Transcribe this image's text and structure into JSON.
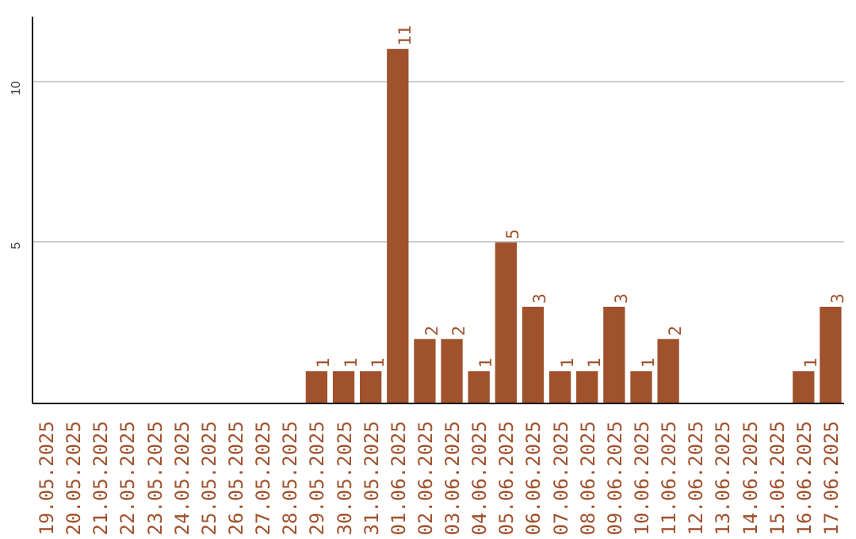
{
  "chart_data": {
    "type": "bar",
    "categories": [
      "19.05.2025",
      "20.05.2025",
      "21.05.2025",
      "22.05.2025",
      "23.05.2025",
      "24.05.2025",
      "25.05.2025",
      "26.05.2025",
      "27.05.2025",
      "28.05.2025",
      "29.05.2025",
      "30.05.2025",
      "31.05.2025",
      "01.06.2025",
      "02.06.2025",
      "03.06.2025",
      "04.06.2025",
      "05.06.2025",
      "06.06.2025",
      "07.06.2025",
      "08.06.2025",
      "09.06.2025",
      "10.06.2025",
      "11.06.2025",
      "12.06.2025",
      "13.06.2025",
      "14.06.2025",
      "15.06.2025",
      "16.06.2025",
      "17.06.2025"
    ],
    "values": [
      0,
      0,
      0,
      0,
      0,
      0,
      0,
      0,
      0,
      0,
      1,
      1,
      1,
      11,
      2,
      2,
      1,
      5,
      3,
      1,
      1,
      3,
      1,
      2,
      0,
      0,
      0,
      0,
      1,
      3
    ],
    "value_labels": [
      null,
      null,
      null,
      null,
      null,
      null,
      null,
      null,
      null,
      null,
      "1",
      "1",
      "1",
      "11",
      "2",
      "2",
      "1",
      "5",
      "3",
      "1",
      "1",
      "3",
      "1",
      "2",
      null,
      null,
      null,
      null,
      "1",
      "3"
    ],
    "color": "#a0522d",
    "ylim": [
      0,
      12
    ],
    "yticks": [
      5,
      10
    ],
    "grid": "y"
  }
}
